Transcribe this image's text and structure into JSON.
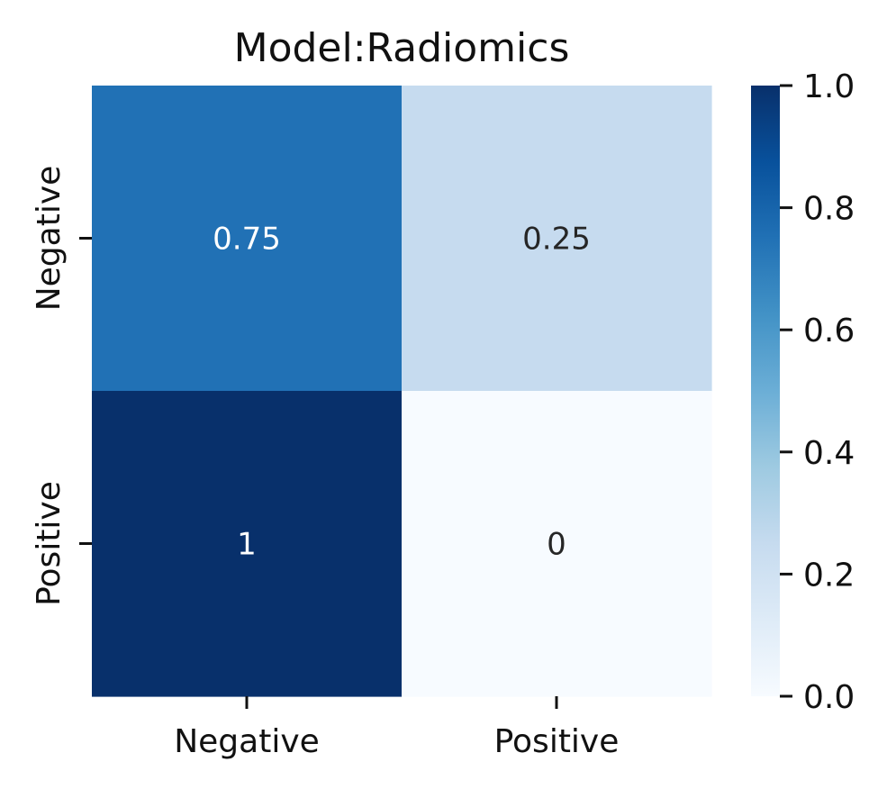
{
  "chart_data": {
    "type": "heatmap",
    "title": "Model:Radiomics",
    "xlabel": "",
    "ylabel": "",
    "x_categories": [
      "Negative",
      "Positive"
    ],
    "y_categories": [
      "Negative",
      "Positive"
    ],
    "values": [
      [
        0.75,
        0.25
      ],
      [
        1,
        0
      ]
    ],
    "cell_labels": [
      [
        "0.75",
        "0.25"
      ],
      [
        "1",
        "0"
      ]
    ],
    "colormap": "Blues",
    "colors": {
      "low": "#f7fbff",
      "high": "#08306b",
      "text_dark": "#262626",
      "text_light": "#ffffff"
    },
    "colorbar": {
      "range": [
        0.0,
        1.0
      ],
      "ticks": [
        "0.0",
        "0.2",
        "0.4",
        "0.6",
        "0.8",
        "1.0"
      ]
    }
  }
}
